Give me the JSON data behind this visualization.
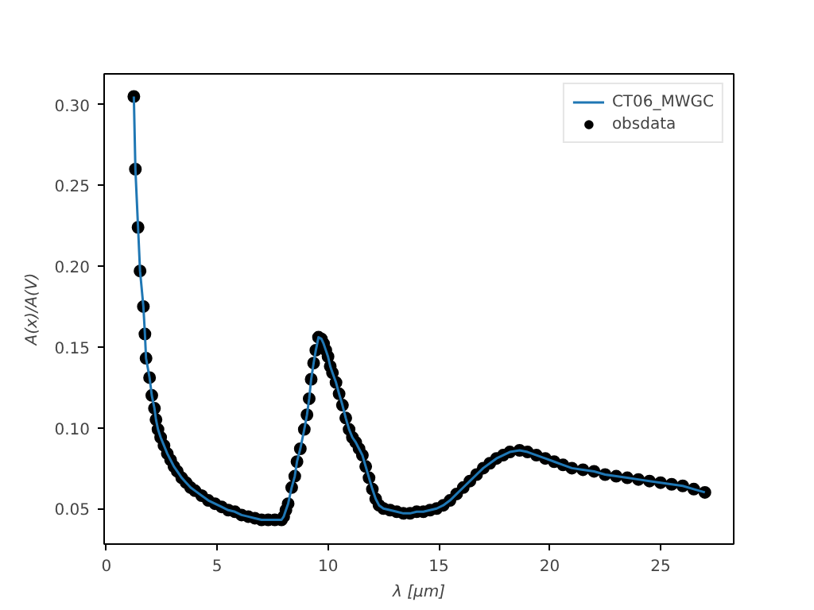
{
  "chart_data": {
    "type": "line",
    "xlabel": "λ [μm]",
    "ylabel": "A(x)/A(V)",
    "x": [
      1.24,
      1.31,
      1.43,
      1.52,
      1.67,
      1.74,
      1.79,
      1.95,
      2.05,
      2.17,
      2.24,
      2.33,
      2.45,
      2.6,
      2.75,
      2.9,
      3.05,
      3.2,
      3.4,
      3.6,
      3.8,
      4.0,
      4.3,
      4.6,
      4.9,
      5.2,
      5.5,
      5.8,
      6.1,
      6.4,
      6.7,
      7.0,
      7.3,
      7.6,
      7.9,
      8.0,
      8.1,
      8.2,
      8.36,
      8.5,
      8.6,
      8.75,
      8.93,
      9.05,
      9.15,
      9.24,
      9.35,
      9.45,
      9.57,
      9.7,
      9.8,
      9.9,
      10.0,
      10.1,
      10.2,
      10.36,
      10.5,
      10.65,
      10.8,
      10.95,
      11.1,
      11.25,
      11.4,
      11.55,
      11.7,
      11.85,
      12.0,
      12.15,
      12.3,
      12.5,
      12.8,
      13.1,
      13.4,
      13.7,
      14.0,
      14.3,
      14.6,
      14.9,
      15.2,
      15.5,
      15.8,
      16.1,
      16.4,
      16.7,
      17.0,
      17.3,
      17.6,
      17.9,
      18.2,
      18.64,
      19.0,
      19.4,
      19.8,
      20.2,
      20.6,
      21.0,
      21.5,
      22.0,
      22.5,
      23.0,
      23.5,
      24.0,
      24.5,
      25.0,
      25.5,
      26.0,
      26.5,
      27.0
    ],
    "series": [
      {
        "name": "CT06_MWGC",
        "color": "#1f77b4",
        "marker": "none",
        "line_style": "solid",
        "values": [
          0.305,
          0.26,
          0.224,
          0.197,
          0.175,
          0.158,
          0.143,
          0.131,
          0.12,
          0.112,
          0.105,
          0.099,
          0.094,
          0.089,
          0.084,
          0.08,
          0.076,
          0.073,
          0.069,
          0.066,
          0.063,
          0.061,
          0.058,
          0.055,
          0.053,
          0.051,
          0.049,
          0.048,
          0.046,
          0.045,
          0.044,
          0.043,
          0.043,
          0.043,
          0.043,
          0.045,
          0.049,
          0.053,
          0.063,
          0.07,
          0.079,
          0.087,
          0.099,
          0.108,
          0.118,
          0.13,
          0.14,
          0.148,
          0.156,
          0.155,
          0.152,
          0.148,
          0.144,
          0.138,
          0.134,
          0.128,
          0.121,
          0.114,
          0.106,
          0.099,
          0.094,
          0.091,
          0.087,
          0.083,
          0.076,
          0.069,
          0.062,
          0.056,
          0.052,
          0.05,
          0.049,
          0.048,
          0.047,
          0.047,
          0.048,
          0.048,
          0.049,
          0.05,
          0.052,
          0.055,
          0.059,
          0.063,
          0.067,
          0.071,
          0.075,
          0.078,
          0.081,
          0.083,
          0.085,
          0.086,
          0.085,
          0.083,
          0.081,
          0.079,
          0.077,
          0.075,
          0.074,
          0.073,
          0.071,
          0.07,
          0.069,
          0.068,
          0.067,
          0.066,
          0.065,
          0.064,
          0.062,
          0.06
        ]
      },
      {
        "name": "obsdata",
        "type": "scatter",
        "color": "#000000",
        "marker": "circle",
        "values": [
          0.305,
          0.26,
          0.224,
          0.197,
          0.175,
          0.158,
          0.143,
          0.131,
          0.12,
          0.112,
          0.105,
          0.099,
          0.094,
          0.089,
          0.084,
          0.08,
          0.076,
          0.073,
          0.069,
          0.066,
          0.063,
          0.061,
          0.058,
          0.055,
          0.053,
          0.051,
          0.049,
          0.048,
          0.046,
          0.045,
          0.044,
          0.043,
          0.043,
          0.043,
          0.043,
          0.045,
          0.049,
          0.053,
          0.063,
          0.07,
          0.079,
          0.087,
          0.099,
          0.108,
          0.118,
          0.13,
          0.14,
          0.148,
          0.156,
          0.155,
          0.152,
          0.148,
          0.144,
          0.138,
          0.134,
          0.128,
          0.121,
          0.114,
          0.106,
          0.099,
          0.094,
          0.091,
          0.087,
          0.083,
          0.076,
          0.069,
          0.062,
          0.056,
          0.052,
          0.05,
          0.049,
          0.048,
          0.047,
          0.047,
          0.048,
          0.048,
          0.049,
          0.05,
          0.052,
          0.055,
          0.059,
          0.063,
          0.067,
          0.071,
          0.075,
          0.078,
          0.081,
          0.083,
          0.085,
          0.086,
          0.085,
          0.083,
          0.081,
          0.079,
          0.077,
          0.075,
          0.074,
          0.073,
          0.071,
          0.07,
          0.069,
          0.068,
          0.067,
          0.066,
          0.065,
          0.064,
          0.062,
          0.06
        ]
      }
    ],
    "xlim": [
      -0.1,
      28.3
    ],
    "ylim": [
      0.028,
      0.319
    ],
    "xticks": [
      0,
      5,
      10,
      15,
      20,
      25
    ],
    "yticks": [
      {
        "value": 0.05,
        "label": "0.05"
      },
      {
        "value": 0.1,
        "label": "0.10"
      },
      {
        "value": 0.15,
        "label": "0.15"
      },
      {
        "value": 0.2,
        "label": "0.20"
      },
      {
        "value": 0.25,
        "label": "0.25"
      },
      {
        "value": 0.3,
        "label": "0.30"
      }
    ],
    "grid": false,
    "legend": "top right"
  }
}
